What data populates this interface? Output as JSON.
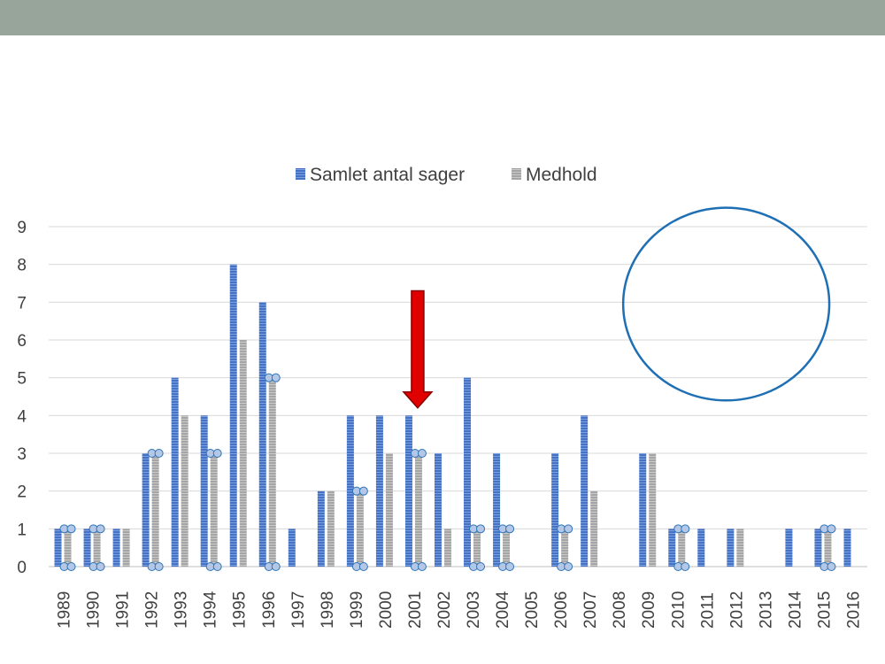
{
  "colors": {
    "banner": "#97a59b",
    "series_total": "#4472c4",
    "series_upheld": "#a5a5a5",
    "grid": "#d9d9d9",
    "arrow_fill": "#e00000",
    "ellipse_stroke": "#1f6fb5",
    "marker_fill": "#b4c7e7",
    "marker_stroke": "#2e75b6"
  },
  "chart_data": {
    "type": "bar",
    "categories": [
      "1989",
      "1990",
      "1991",
      "1992",
      "1993",
      "1994",
      "1995",
      "1996",
      "1997",
      "1998",
      "1999",
      "2000",
      "2001",
      "2002",
      "2003",
      "2004",
      "2005",
      "2006",
      "2007",
      "2008",
      "2009",
      "2010",
      "2011",
      "2012",
      "2013",
      "2014",
      "2015",
      "2016"
    ],
    "series": [
      {
        "name": "Samlet antal sager",
        "values": [
          1,
          1,
          1,
          3,
          5,
          4,
          8,
          7,
          1,
          2,
          4,
          4,
          4,
          3,
          5,
          3,
          0,
          3,
          4,
          0,
          3,
          1,
          1,
          1,
          0,
          1,
          1,
          1
        ]
      },
      {
        "name": "Medhold",
        "values": [
          1,
          1,
          1,
          3,
          4,
          3,
          6,
          5,
          0,
          2,
          2,
          3,
          3,
          1,
          1,
          1,
          0,
          1,
          2,
          0,
          3,
          1,
          0,
          1,
          0,
          0,
          1,
          0
        ]
      }
    ],
    "marked_categories": [
      "1989",
      "1990",
      "1992",
      "1994",
      "1996",
      "1999",
      "2001",
      "2003",
      "2004",
      "2006",
      "2010",
      "2015"
    ],
    "ylim": [
      0,
      9
    ],
    "yticks": [
      "0",
      "1",
      "2",
      "3",
      "4",
      "5",
      "6",
      "7",
      "8",
      "9"
    ],
    "legend_position": "top-center",
    "grid": true,
    "annotations": [
      {
        "type": "arrow",
        "points_to": "2001",
        "from_y": 7.3,
        "to_y": 4.2
      },
      {
        "type": "ellipse",
        "x_from": "2009",
        "x_to": "2014",
        "y_from": 4.4,
        "y_to": 9.5
      }
    ]
  }
}
